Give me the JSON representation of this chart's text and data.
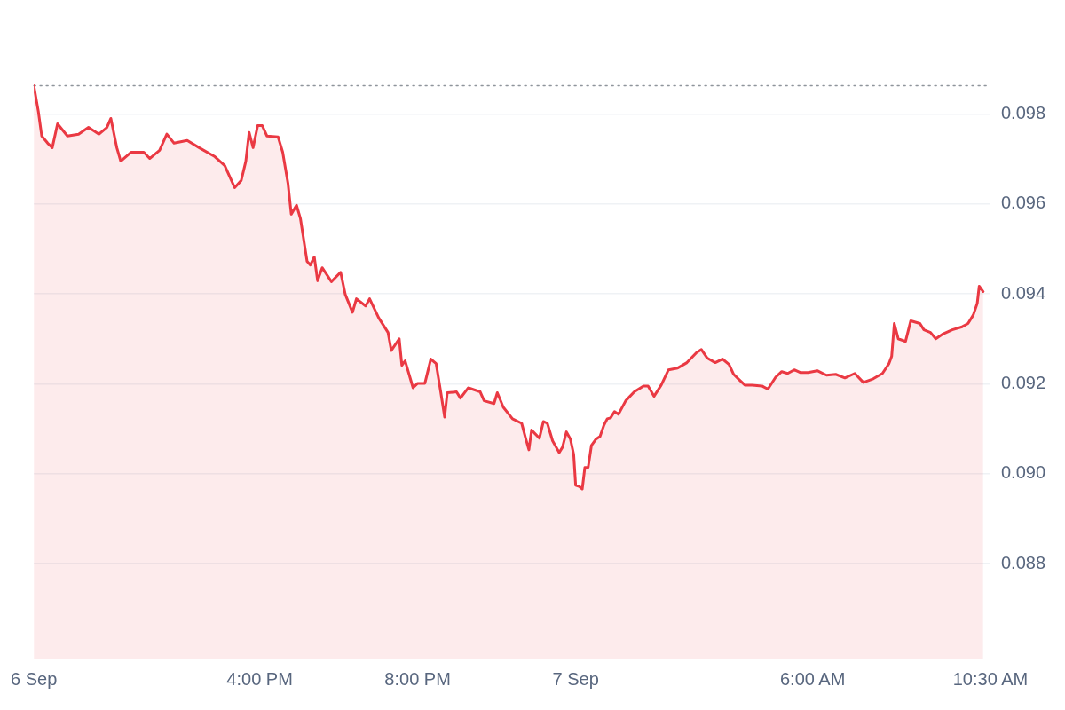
{
  "chart_data": {
    "type": "area",
    "x": [
      "--09-06T10:17",
      "--09-06T10:24",
      "--09-06T10:29",
      "--09-06T10:38",
      "--09-06T10:45",
      "--09-06T10:53",
      "--09-06T11:08",
      "--09-06T11:25",
      "--09-06T11:40",
      "--09-06T11:56",
      "--09-06T12:08",
      "--09-06T12:14",
      "--09-06T12:23",
      "--09-06T12:29",
      "--09-06T12:45",
      "--09-06T13:04",
      "--09-06T13:13",
      "--09-06T13:28",
      "--09-06T13:39",
      "--09-06T13:50",
      "--09-06T14:10",
      "--09-06T14:28",
      "--09-06T14:52",
      "--09-06T15:07",
      "--09-06T15:22",
      "--09-06T15:32",
      "--09-06T15:39",
      "--09-06T15:44",
      "--09-06T15:50",
      "--09-06T15:57",
      "--09-06T16:04",
      "--09-06T16:11",
      "--09-06T16:28",
      "--09-06T16:35",
      "--09-06T16:43",
      "--09-06T16:48",
      "--09-06T16:56",
      "--09-06T17:02",
      "--09-06T17:12",
      "--09-06T17:17",
      "--09-06T17:23",
      "--09-06T17:28",
      "--09-06T17:35",
      "--09-06T17:49",
      "--09-06T18:03",
      "--09-06T18:10",
      "--09-06T18:21",
      "--09-06T18:27",
      "--09-06T18:41",
      "--09-06T18:47",
      "--09-06T19:01",
      "--09-06T19:15",
      "--09-06T19:20",
      "--09-06T19:32",
      "--09-06T19:36",
      "--09-06T19:41",
      "--09-06T19:53",
      "--09-06T20:00",
      "--09-06T20:11",
      "--09-06T20:20",
      "--09-06T20:28",
      "--09-06T20:35",
      "--09-06T20:41",
      "--09-06T20:45",
      "--09-06T20:59",
      "--09-06T21:05",
      "--09-06T21:17",
      "--09-06T21:35",
      "--09-06T21:41",
      "--09-06T21:56",
      "--09-06T22:01",
      "--09-06T22:10",
      "--09-06T22:24",
      "--09-06T22:38",
      "--09-06T22:44",
      "--09-06T22:49",
      "--09-06T22:53",
      "--09-06T23:05",
      "--09-06T23:11",
      "--09-06T23:17",
      "--09-06T23:25",
      "--09-06T23:35",
      "--09-06T23:40",
      "--09-06T23:46",
      "--09-06T23:52",
      "--09-06T23:57",
      "--09-07T00:00",
      "--09-07T00:05",
      "--09-07T00:10",
      "--09-07T00:14",
      "--09-07T00:19",
      "--09-07T00:24",
      "--09-07T00:31",
      "--09-07T00:37",
      "--09-07T00:43",
      "--09-07T00:48",
      "--09-07T00:53",
      "--09-07T00:59",
      "--09-07T01:05",
      "--09-07T01:16",
      "--09-07T01:29",
      "--09-07T01:43",
      "--09-07T01:50",
      "--09-07T01:59",
      "--09-07T02:10",
      "--09-07T02:21",
      "--09-07T02:35",
      "--09-07T02:49",
      "--09-07T03:04",
      "--09-07T03:11",
      "--09-07T03:20",
      "--09-07T03:32",
      "--09-07T03:43",
      "--09-07T03:53",
      "--09-07T04:00",
      "--09-07T04:07",
      "--09-07T04:17",
      "--09-07T04:28",
      "--09-07T04:43",
      "--09-07T04:52",
      "--09-07T05:04",
      "--09-07T05:13",
      "--09-07T05:22",
      "--09-07T05:32",
      "--09-07T05:41",
      "--09-07T05:53",
      "--09-07T06:07",
      "--09-07T06:21",
      "--09-07T06:35",
      "--09-07T06:49",
      "--09-07T07:04",
      "--09-07T07:17",
      "--09-07T07:32",
      "--09-07T07:46",
      "--09-07T07:56",
      "--09-07T08:00",
      "--09-07T08:04",
      "--09-07T08:10",
      "--09-07T08:21",
      "--09-07T08:29",
      "--09-07T08:43",
      "--09-07T08:49",
      "--09-07T08:59",
      "--09-07T09:07",
      "--09-07T09:17",
      "--09-07T09:32",
      "--09-07T09:46",
      "--09-07T09:56",
      "--09-07T10:04",
      "--09-07T10:10",
      "--09-07T10:13",
      "--09-07T10:19"
    ],
    "series": [
      {
        "color": "#ea3943",
        "values": [
          0.09863,
          0.09804,
          0.09751,
          0.09735,
          0.09725,
          0.09778,
          0.09751,
          0.09755,
          0.0977,
          0.09755,
          0.0977,
          0.0979,
          0.09725,
          0.09695,
          0.09715,
          0.09715,
          0.09701,
          0.09719,
          0.09755,
          0.09735,
          0.09741,
          0.09725,
          0.09705,
          0.09685,
          0.09636,
          0.09652,
          0.09695,
          0.09759,
          0.09725,
          0.09774,
          0.09774,
          0.09751,
          0.09749,
          0.09715,
          0.09646,
          0.09577,
          0.09597,
          0.09567,
          0.09472,
          0.09464,
          0.09482,
          0.09429,
          0.09458,
          0.09427,
          0.09448,
          0.09399,
          0.09359,
          0.09389,
          0.09373,
          0.09389,
          0.09346,
          0.09314,
          0.09274,
          0.093,
          0.09241,
          0.09251,
          0.09191,
          0.09201,
          0.09201,
          0.09255,
          0.09245,
          0.09182,
          0.09126,
          0.0918,
          0.09182,
          0.09168,
          0.09191,
          0.09182,
          0.09162,
          0.09156,
          0.0918,
          0.09148,
          0.09122,
          0.09112,
          0.09079,
          0.09053,
          0.09097,
          0.09079,
          0.09116,
          0.09112,
          0.09073,
          0.09047,
          0.09059,
          0.09093,
          0.09077,
          0.09043,
          0.08974,
          0.08972,
          0.08966,
          0.09014,
          0.09014,
          0.09063,
          0.09077,
          0.09083,
          0.09108,
          0.09122,
          0.09124,
          0.09138,
          0.09132,
          0.09162,
          0.09182,
          0.09195,
          0.09195,
          0.09172,
          0.09197,
          0.09231,
          0.09235,
          0.09247,
          0.0927,
          0.09276,
          0.09257,
          0.09247,
          0.09255,
          0.09243,
          0.09221,
          0.09211,
          0.09197,
          0.09197,
          0.09195,
          0.09188,
          0.09215,
          0.09227,
          0.09223,
          0.09231,
          0.09225,
          0.09225,
          0.09229,
          0.09219,
          0.09221,
          0.09213,
          0.09223,
          0.09203,
          0.09211,
          0.09223,
          0.09245,
          0.09261,
          0.09334,
          0.093,
          0.09294,
          0.0934,
          0.09334,
          0.0932,
          0.09314,
          0.093,
          0.0931,
          0.0932,
          0.09326,
          0.09334,
          0.09353,
          0.09379,
          0.09417,
          0.09405
        ]
      }
    ],
    "xlim": [
      "--09-06T10:17",
      "--09-07T10:30"
    ],
    "xticks": [
      {
        "value": "--09-06T10:17",
        "label": "6 Sep"
      },
      {
        "value": "--09-06T16:00",
        "label": "4:00 PM"
      },
      {
        "value": "--09-06T20:00",
        "label": "8:00 PM"
      },
      {
        "value": "--09-07",
        "label": "7 Sep"
      },
      {
        "value": "--09-07T06:00",
        "label": "6:00 AM"
      },
      {
        "value": "--09-07T10:30",
        "label": "10:30 AM"
      }
    ],
    "ylim": [
      0.08589,
      0.10006
    ],
    "yticks": [
      {
        "value": 0.088,
        "label": "0.088"
      },
      {
        "value": 0.09,
        "label": "0.090"
      },
      {
        "value": 0.092,
        "label": "0.092"
      },
      {
        "value": 0.094,
        "label": "0.094"
      },
      {
        "value": 0.096,
        "label": "0.096"
      },
      {
        "value": 0.098,
        "label": "0.098"
      }
    ],
    "ref_lines": [
      {
        "axis": "y",
        "value": 0.09863,
        "color": "#8f959c",
        "line_style": "dotted"
      }
    ],
    "grid": "y",
    "legend": false,
    "marker": "none",
    "line_style": "solid"
  }
}
